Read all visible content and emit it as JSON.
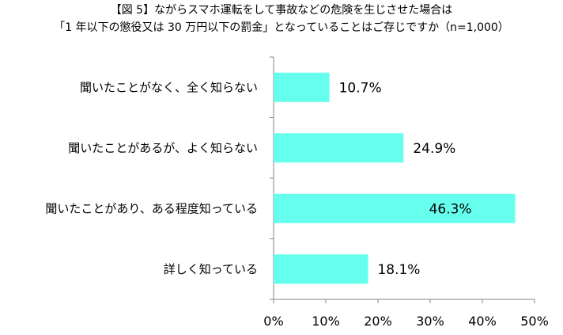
{
  "chart_data": {
    "type": "bar",
    "orientation": "horizontal",
    "title_lines": [
      "【図 5】ながらスマホ運転をして事故などの危険を生じさせた場合は",
      "「1 年以下の懲役又は 30 万円以下の罰金」となっていることはご存じですか（n=1,000）"
    ],
    "categories": [
      "聞いたことがなく、全く知らない",
      "聞いたことがあるが、よく知らない",
      "聞いたことがあり、ある程度知っている",
      "詳しく知っている"
    ],
    "values": [
      10.7,
      24.9,
      46.3,
      18.1
    ],
    "value_labels": [
      "10.7%",
      "24.9%",
      "46.3%",
      "18.1%"
    ],
    "xlim": [
      0,
      50
    ],
    "xticks": [
      0,
      10,
      20,
      30,
      40,
      50
    ],
    "xtick_labels": [
      "0%",
      "10%",
      "20%",
      "30%",
      "40%",
      "50%"
    ],
    "bar_color": "#66FFEE",
    "grid": false
  }
}
